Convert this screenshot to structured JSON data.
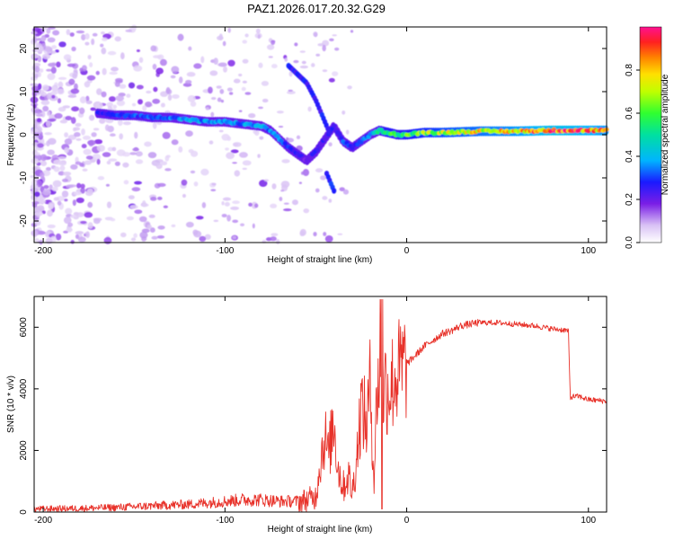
{
  "title": "PAZ1.2026.017.20.32.G29",
  "chart_data": [
    {
      "type": "heatmap",
      "name": "spectrogram",
      "xlabel": "Height of straight line (km)",
      "ylabel": "Frequency (Hz)",
      "xlim": [
        -205,
        110
      ],
      "ylim": [
        -25,
        25
      ],
      "xticks": [
        -200,
        -100,
        0,
        100
      ],
      "yticks": [
        -20,
        -10,
        0,
        10,
        20
      ],
      "colorbar": {
        "label": "Normalized spectral amplitude",
        "range": [
          0,
          1
        ],
        "ticks": [
          "0.0",
          "0.2",
          "0.4",
          "0.6",
          "0.8"
        ]
      },
      "ridge": {
        "x": [
          -170,
          -160,
          -150,
          -140,
          -130,
          -120,
          -110,
          -100,
          -90,
          -80,
          -75,
          -70,
          -65,
          -60,
          -55,
          -50,
          -45,
          -40,
          -35,
          -30,
          -25,
          -20,
          -15,
          -10,
          -5,
          0,
          10,
          20,
          40,
          60,
          80,
          100,
          110
        ],
        "y": [
          5,
          4.5,
          4.5,
          4,
          4,
          3.5,
          3,
          3,
          2.5,
          2,
          1,
          -1,
          -3,
          -4.5,
          -6,
          -4,
          -1,
          2,
          -1.5,
          -3,
          -1.5,
          0,
          1,
          0.5,
          0,
          0,
          0.5,
          0.5,
          0.8,
          0.8,
          1,
          1,
          1
        ],
        "amplitude": [
          0.25,
          0.3,
          0.3,
          0.32,
          0.35,
          0.38,
          0.35,
          0.35,
          0.35,
          0.4,
          0.35,
          0.35,
          0.3,
          0.25,
          0.2,
          0.25,
          0.25,
          0.25,
          0.3,
          0.3,
          0.3,
          0.4,
          0.5,
          0.6,
          0.55,
          0.6,
          0.65,
          0.7,
          0.75,
          0.8,
          0.9,
          0.85,
          0.8
        ]
      }
    },
    {
      "type": "line",
      "name": "snr",
      "xlabel": "Height of straight line (km)",
      "ylabel": "SNR (10 * v/v)",
      "xlim": [
        -205,
        110
      ],
      "ylim": [
        0,
        7000
      ],
      "xticks": [
        -200,
        -100,
        0,
        100
      ],
      "yticks": [
        0,
        2000,
        4000,
        6000
      ],
      "color": "#e8322a",
      "series": [
        {
          "name": "SNR",
          "x": [
            -205,
            -180,
            -160,
            -140,
            -120,
            -110,
            -100,
            -90,
            -80,
            -70,
            -60,
            -55,
            -50,
            -48,
            -45,
            -43,
            -40,
            -38,
            -35,
            -32,
            -30,
            -28,
            -25,
            -22,
            -20,
            -18,
            -16,
            -14,
            -12,
            -10,
            -5,
            0,
            5,
            10,
            15,
            20,
            25,
            30,
            35,
            40,
            50,
            60,
            70,
            80,
            88,
            89,
            90,
            91,
            95,
            100,
            110
          ],
          "y": [
            100,
            120,
            150,
            200,
            250,
            300,
            350,
            400,
            400,
            350,
            350,
            400,
            500,
            1500,
            2500,
            1800,
            3000,
            1500,
            800,
            1200,
            600,
            1500,
            3500,
            2800,
            4200,
            1000,
            4500,
            3200,
            4200,
            4000,
            4500,
            4800,
            5100,
            5400,
            5600,
            5800,
            5900,
            6050,
            6100,
            6150,
            6150,
            6100,
            6050,
            5950,
            5900,
            5850,
            3700,
            3750,
            3750,
            3650,
            3600
          ]
        }
      ]
    }
  ]
}
